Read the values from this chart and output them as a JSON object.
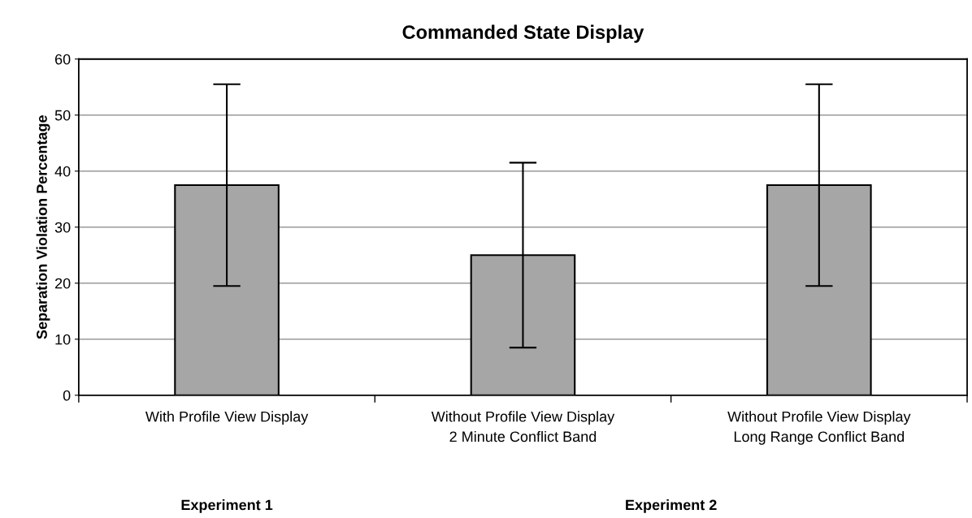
{
  "chart_data": {
    "type": "bar",
    "title": "Commanded State Display",
    "ylabel": "Separation Violation Percentage",
    "categories": [
      "With Profile View Display",
      "Without Profile View Display\n2 Minute Conflict Band",
      "Without Profile View Display\nLong Range Conflict Band"
    ],
    "values": [
      37.5,
      25,
      37.5
    ],
    "errors": [
      18,
      16.5,
      18
    ],
    "color": "#a6a6a6",
    "ylim": [
      0,
      60
    ],
    "yticks": [
      0,
      10,
      20,
      30,
      40,
      50,
      60
    ],
    "grid": "y",
    "annotations": [
      "Experiment 1",
      "Experiment 2"
    ]
  }
}
